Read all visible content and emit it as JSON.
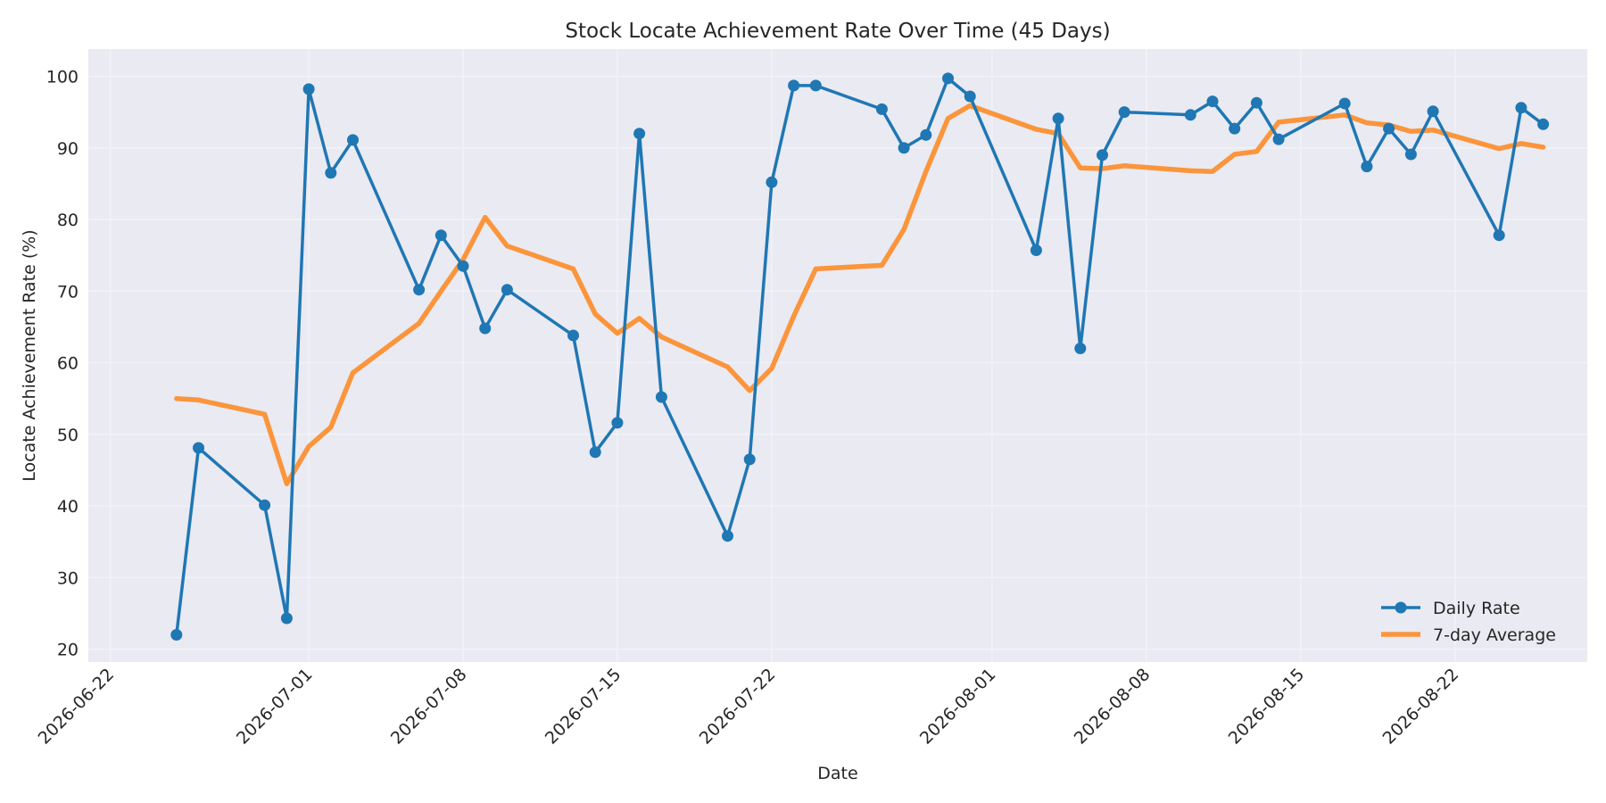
{
  "chart_data": {
    "type": "line",
    "title": "Stock Locate Achievement Rate Over Time (45 Days)",
    "xlabel": "Date",
    "ylabel": "Locate Achievement Rate (%)",
    "ylim": [
      18.2,
      103.8
    ],
    "xlim": [
      "2026-06-21",
      "2026-08-28"
    ],
    "grid": true,
    "legend_position": "lower-right",
    "x_ticks": [
      "2026-06-22",
      "2026-07-01",
      "2026-07-08",
      "2026-07-15",
      "2026-07-22",
      "2026-08-01",
      "2026-08-08",
      "2026-08-15",
      "2026-08-22"
    ],
    "y_ticks": [
      20,
      30,
      40,
      50,
      60,
      70,
      80,
      90,
      100
    ],
    "colors": {
      "plot_background": "#eaeaf2",
      "daily": "#1f77b4",
      "avg": "#ff7f0e"
    },
    "x": [
      "2026-06-25",
      "2026-06-26",
      "2026-06-29",
      "2026-06-30",
      "2026-07-01",
      "2026-07-02",
      "2026-07-03",
      "2026-07-06",
      "2026-07-07",
      "2026-07-08",
      "2026-07-09",
      "2026-07-10",
      "2026-07-13",
      "2026-07-14",
      "2026-07-15",
      "2026-07-16",
      "2026-07-17",
      "2026-07-20",
      "2026-07-21",
      "2026-07-22",
      "2026-07-23",
      "2026-07-24",
      "2026-07-27",
      "2026-07-28",
      "2026-07-29",
      "2026-07-30",
      "2026-07-31",
      "2026-08-03",
      "2026-08-04",
      "2026-08-05",
      "2026-08-06",
      "2026-08-07",
      "2026-08-10",
      "2026-08-11",
      "2026-08-12",
      "2026-08-13",
      "2026-08-14",
      "2026-08-17",
      "2026-08-18",
      "2026-08-19",
      "2026-08-20",
      "2026-08-21",
      "2026-08-24",
      "2026-08-25",
      "2026-08-26"
    ],
    "series": [
      {
        "name": "Daily Rate",
        "color": "#1f77b4",
        "marker": true,
        "values": [
          22.0,
          48.1,
          40.1,
          24.3,
          98.2,
          86.5,
          91.1,
          70.2,
          77.8,
          73.5,
          64.8,
          70.2,
          63.8,
          47.5,
          51.6,
          92.0,
          55.2,
          35.8,
          46.5,
          85.2,
          98.7,
          98.7,
          95.4,
          90.0,
          91.8,
          99.7,
          97.2,
          75.7,
          94.1,
          62.0,
          89.0,
          95.0,
          94.6,
          96.5,
          92.7,
          96.3,
          91.2,
          96.2,
          87.4,
          92.7,
          89.1,
          95.1,
          77.8,
          95.6,
          93.3
        ]
      },
      {
        "name": "7-day Average",
        "color": "#ff7f0e",
        "marker": false,
        "values": [
          55.0,
          54.8,
          52.8,
          43.1,
          48.3,
          51.0,
          58.6,
          65.5,
          70.0,
          74.4,
          80.3,
          76.3,
          73.1,
          66.8,
          64.1,
          66.2,
          63.6,
          59.4,
          56.1,
          59.2,
          66.5,
          73.1,
          73.6,
          78.6,
          86.7,
          94.1,
          95.9,
          92.6,
          92.0,
          87.2,
          87.1,
          87.5,
          86.8,
          86.7,
          89.1,
          89.5,
          93.6,
          94.6,
          93.5,
          93.2,
          92.3,
          92.5,
          89.9,
          90.6,
          90.1
        ]
      }
    ]
  }
}
